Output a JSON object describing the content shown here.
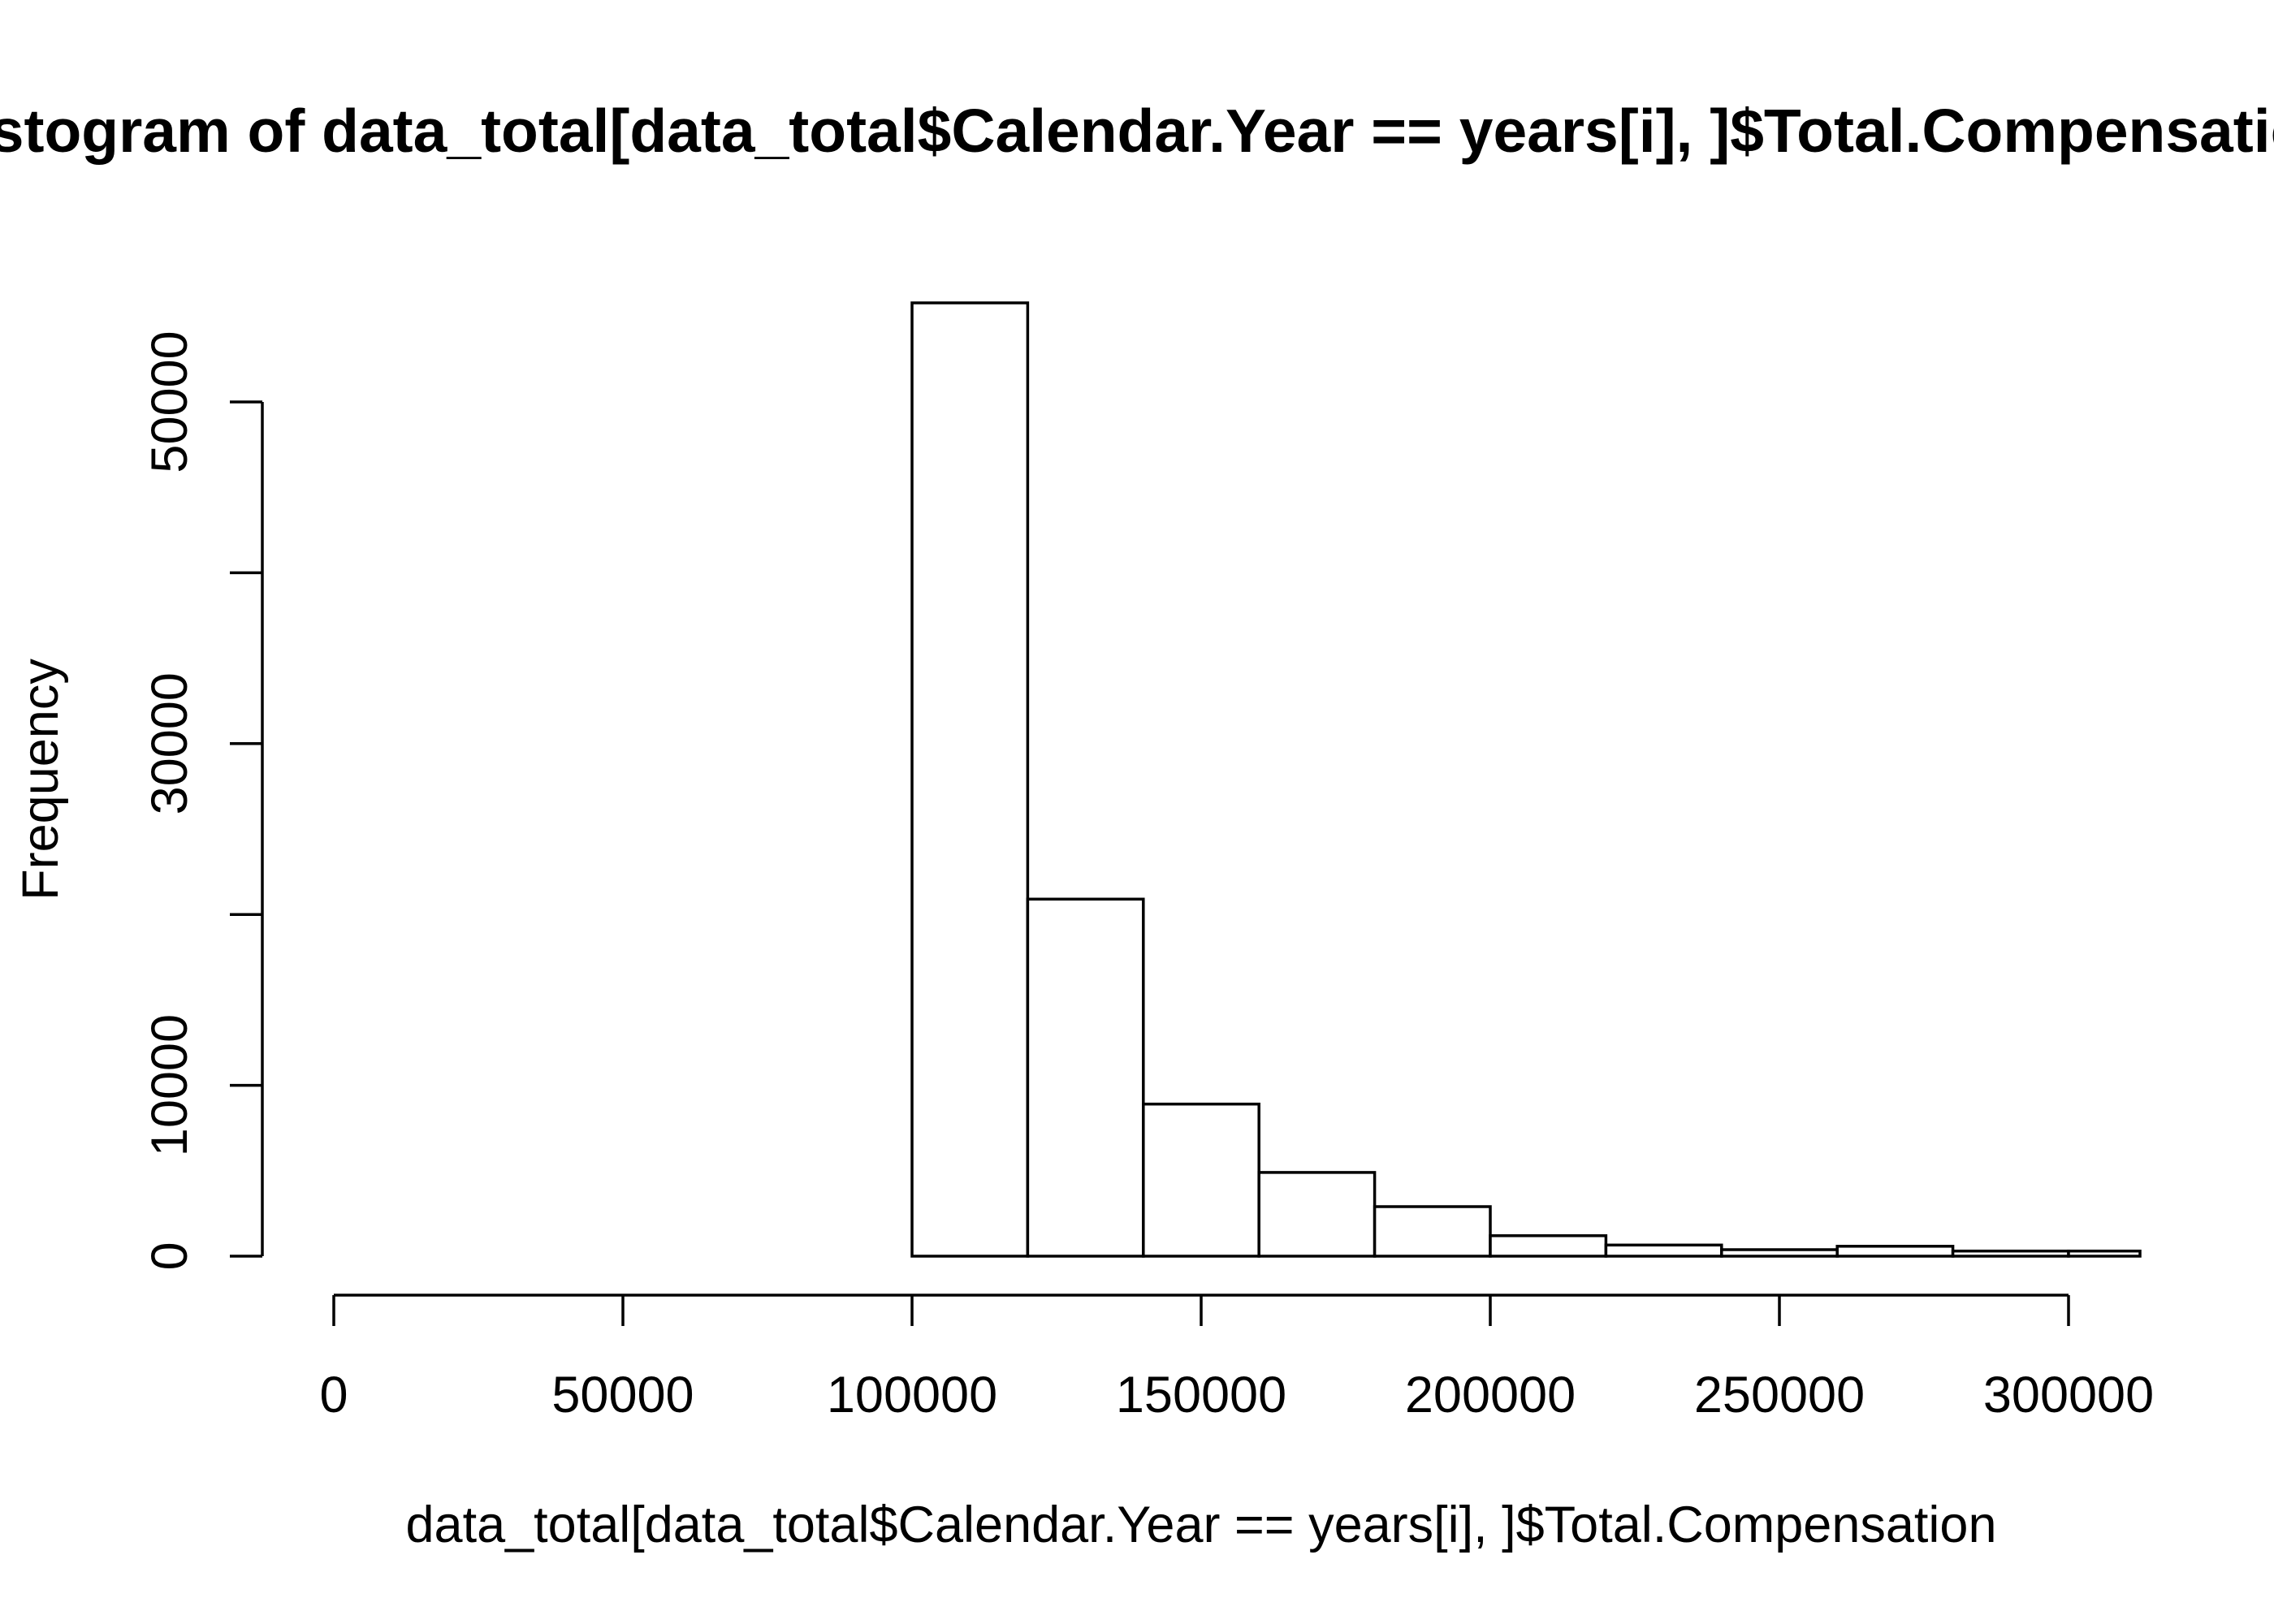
{
  "chart_data": {
    "type": "bar",
    "title": "Histogram of data_total[data_total$Calendar.Year == years[i], ]$Total.Compensation",
    "xlabel": "data_total[data_total$Calendar.Year == years[i], ]$Total.Compensation",
    "ylabel": "Frequency",
    "xlim": [
      0,
      312000
    ],
    "ylim": [
      0,
      56000
    ],
    "x_ticks": [
      0,
      50000,
      100000,
      150000,
      200000,
      250000,
      300000
    ],
    "x_tick_labels": [
      "0",
      "50000",
      "100000",
      "150000",
      "200000",
      "250000",
      "300000"
    ],
    "y_ticks": [
      0,
      10000,
      20000,
      30000,
      40000,
      50000
    ],
    "y_tick_labels": [
      "0",
      "10000",
      "",
      "30000",
      "",
      "50000"
    ],
    "bins": [
      {
        "from": 100000,
        "to": 120000,
        "count": 55800
      },
      {
        "from": 120000,
        "to": 140000,
        "count": 20900
      },
      {
        "from": 140000,
        "to": 160000,
        "count": 8900
      },
      {
        "from": 160000,
        "to": 180000,
        "count": 4900
      },
      {
        "from": 180000,
        "to": 200000,
        "count": 2900
      },
      {
        "from": 200000,
        "to": 220000,
        "count": 1200
      },
      {
        "from": 220000,
        "to": 240000,
        "count": 650
      },
      {
        "from": 240000,
        "to": 260000,
        "count": 380
      },
      {
        "from": 260000,
        "to": 280000,
        "count": 580
      },
      {
        "from": 280000,
        "to": 300000,
        "count": 300
      },
      {
        "from": 300000,
        "to": 320000,
        "count": 300
      }
    ],
    "grid": false,
    "legend": "none",
    "colors": {
      "bar_fill": "#ffffff",
      "bar_stroke": "#000000"
    }
  }
}
